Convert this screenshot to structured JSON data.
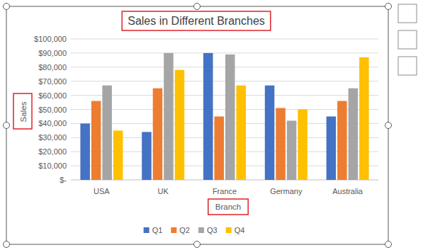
{
  "chart_data": {
    "type": "bar",
    "title": "Sales in Different Branches",
    "x_label": "Branch",
    "y_label": "Sales",
    "categories": [
      "USA",
      "UK",
      "France",
      "Germany",
      "Australia"
    ],
    "series": [
      {
        "name": "Q1",
        "color": "#4472c4",
        "values": [
          40000,
          34000,
          90000,
          67000,
          45000
        ]
      },
      {
        "name": "Q2",
        "color": "#ed7d31",
        "values": [
          56000,
          65000,
          45000,
          51000,
          56000
        ]
      },
      {
        "name": "Q3",
        "color": "#a5a5a5",
        "values": [
          67000,
          90000,
          89000,
          42000,
          65000
        ]
      },
      {
        "name": "Q4",
        "color": "#ffc000",
        "values": [
          35000,
          78000,
          67000,
          50000,
          87000
        ]
      }
    ],
    "ylim": [
      0,
      100000
    ],
    "yticks": [
      {
        "value": 0,
        "label": "$-"
      },
      {
        "value": 10000,
        "label": "$10,000"
      },
      {
        "value": 20000,
        "label": "$20,000"
      },
      {
        "value": 30000,
        "label": "$30,000"
      },
      {
        "value": 40000,
        "label": "$40,000"
      },
      {
        "value": 50000,
        "label": "$50,000"
      },
      {
        "value": 60000,
        "label": "$60,000"
      },
      {
        "value": 70000,
        "label": "$70,000"
      },
      {
        "value": 80000,
        "label": "$80,000"
      },
      {
        "value": 90000,
        "label": "$90,000"
      },
      {
        "value": 100000,
        "label": "$100,000"
      }
    ],
    "grid": true,
    "legend": "bottom"
  }
}
